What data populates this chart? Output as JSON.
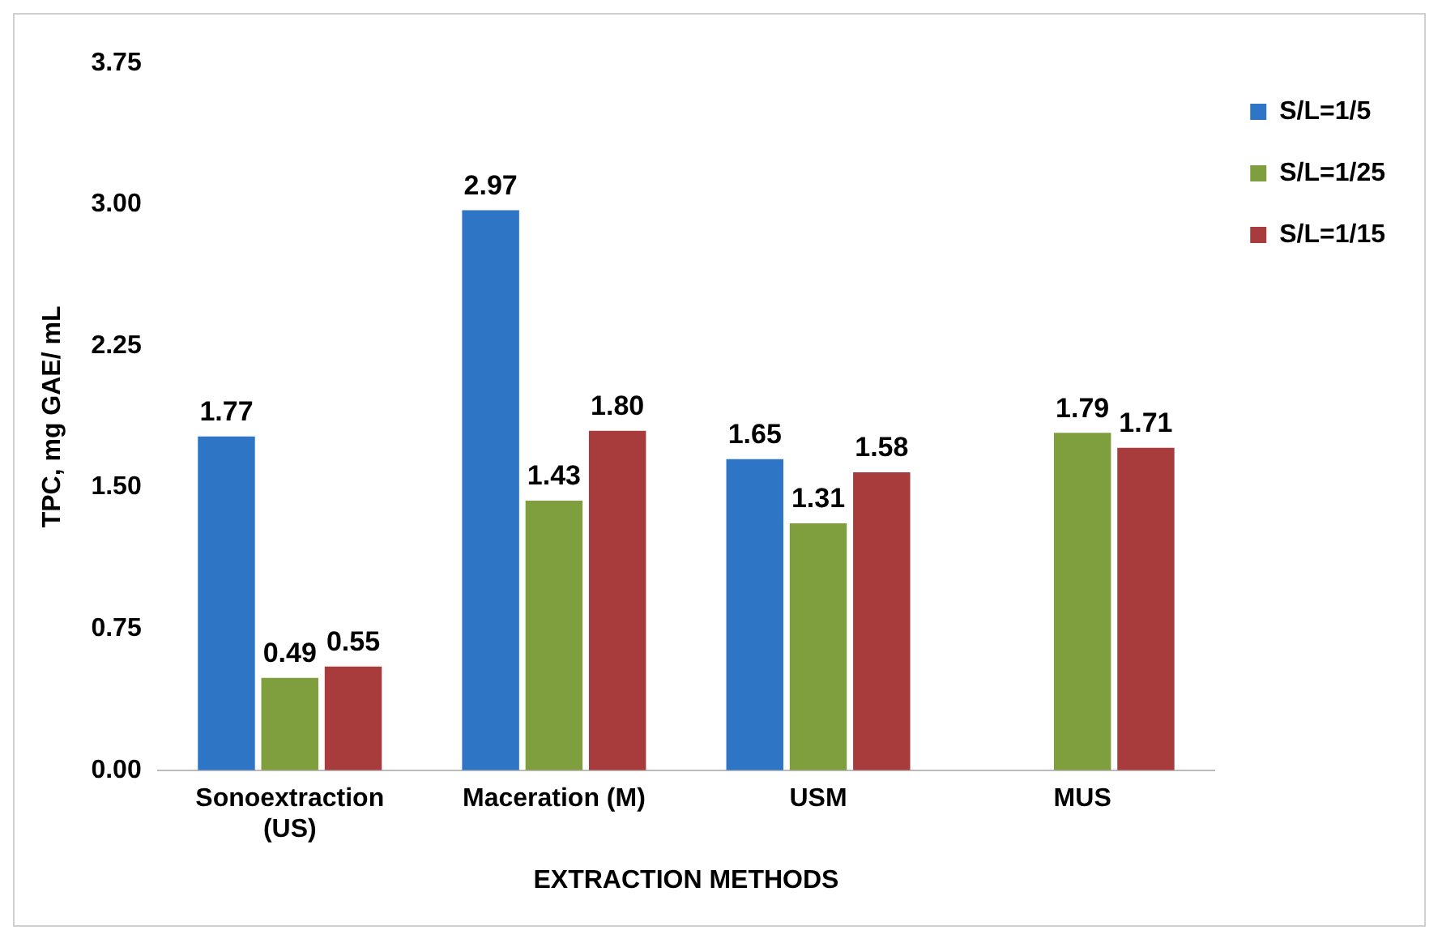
{
  "chart_data": {
    "type": "bar",
    "xlabel": "EXTRACTION METHODS",
    "ylabel": "TPC, mg GAE/ mL",
    "categories": [
      "Sonoextraction (US)",
      "Maceration (M)",
      "USM",
      "MUS"
    ],
    "series": [
      {
        "name": "S/L=1/5",
        "color": "#2e75c6",
        "values": [
          1.77,
          2.97,
          1.65,
          null
        ],
        "value_labels": [
          "1.77",
          "2.97",
          "1.65",
          null
        ]
      },
      {
        "name": "S/L=1/25",
        "color": "#7f9f3f",
        "values": [
          0.49,
          1.43,
          1.31,
          1.79
        ],
        "value_labels": [
          "0.49",
          "1.43",
          "1.31",
          "1.79"
        ]
      },
      {
        "name": "S/L=1/15",
        "color": "#a83c3c",
        "values": [
          0.55,
          1.8,
          1.58,
          1.71
        ],
        "value_labels": [
          "0.55",
          "1.80",
          "1.58",
          "1.71"
        ]
      }
    ],
    "ylim": [
      0,
      3.75
    ],
    "yticks": [
      {
        "value": 0,
        "label": "0.00"
      },
      {
        "value": 0.75,
        "label": "0.75"
      },
      {
        "value": 1.5,
        "label": "1.50"
      },
      {
        "value": 2.25,
        "label": "2.25"
      },
      {
        "value": 3,
        "label": "3.00"
      },
      {
        "value": 3.75,
        "label": "3.75"
      }
    ],
    "grid": false,
    "legend": "top right"
  }
}
